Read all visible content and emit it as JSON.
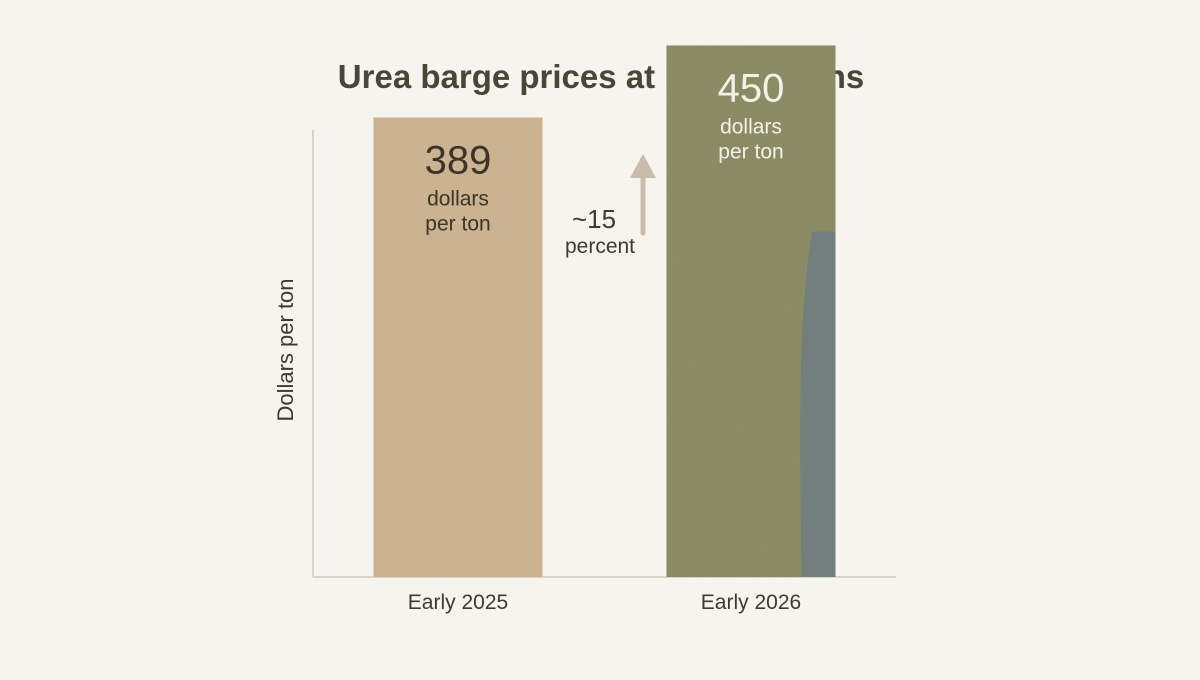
{
  "chart_data": {
    "type": "bar",
    "title": "Urea barge prices at New Orleans",
    "ylabel": "Dollars per ton",
    "xlabel": "",
    "categories": [
      "Early 2025",
      "Early 2026"
    ],
    "values": [
      389,
      450
    ],
    "ylim": [
      0,
      480
    ],
    "grid": false,
    "bar_colors": [
      "#cdb491",
      "#8c8c66"
    ],
    "accent_color": "#6f7d80",
    "arrow_color": "#c9bca8",
    "bar_labels": [
      {
        "value": "389",
        "line1": "dollars",
        "line2": "per ton"
      },
      {
        "value": "450",
        "line1": "dollars",
        "line2": "per ton"
      }
    ],
    "annotation": {
      "line1": "~15",
      "line2": "percent",
      "icon": "up-arrow-icon"
    }
  }
}
